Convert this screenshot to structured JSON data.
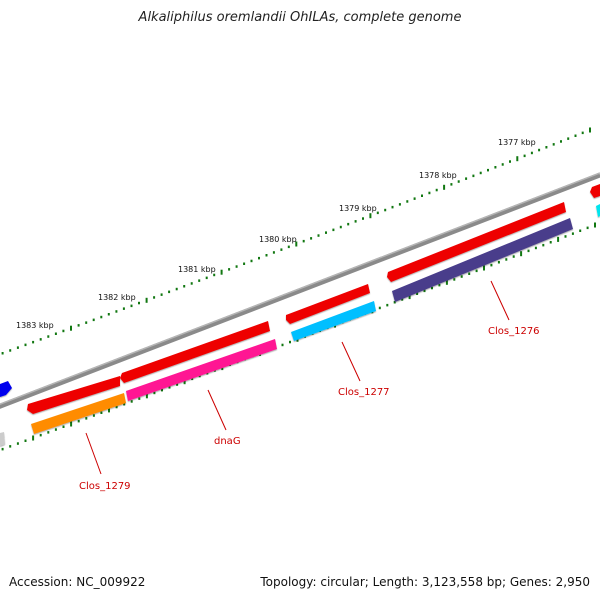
{
  "title": "Alkaliphilus oremlandii OhILAs, complete genome",
  "footer": {
    "accession": "Accession: NC_009922",
    "summary": "Topology: circular; Length: 3,123,558 bp; Genes: 2,950"
  },
  "map": {
    "backbone_color": "#8a8a8a",
    "tick_color": "#117711",
    "label_color": "#cc0000",
    "scale_labels": [
      "1377 kbp",
      "1378 kbp",
      "1379 kbp",
      "1380 kbp",
      "1381 kbp",
      "1382 kbp",
      "1383 kbp"
    ],
    "genes": [
      {
        "name": "Clos_1279",
        "color": "#ff8c00"
      },
      {
        "name": "dnaG",
        "color": "#ff1493"
      },
      {
        "name": "Clos_1277",
        "color": "#00bfff"
      },
      {
        "name": "Clos_1276",
        "color": "#483d8b"
      }
    ],
    "forward_feature_color": "#ee0000",
    "edge_feature_colors": [
      "#0000ee",
      "#cccccc",
      "#00e5ee"
    ]
  }
}
